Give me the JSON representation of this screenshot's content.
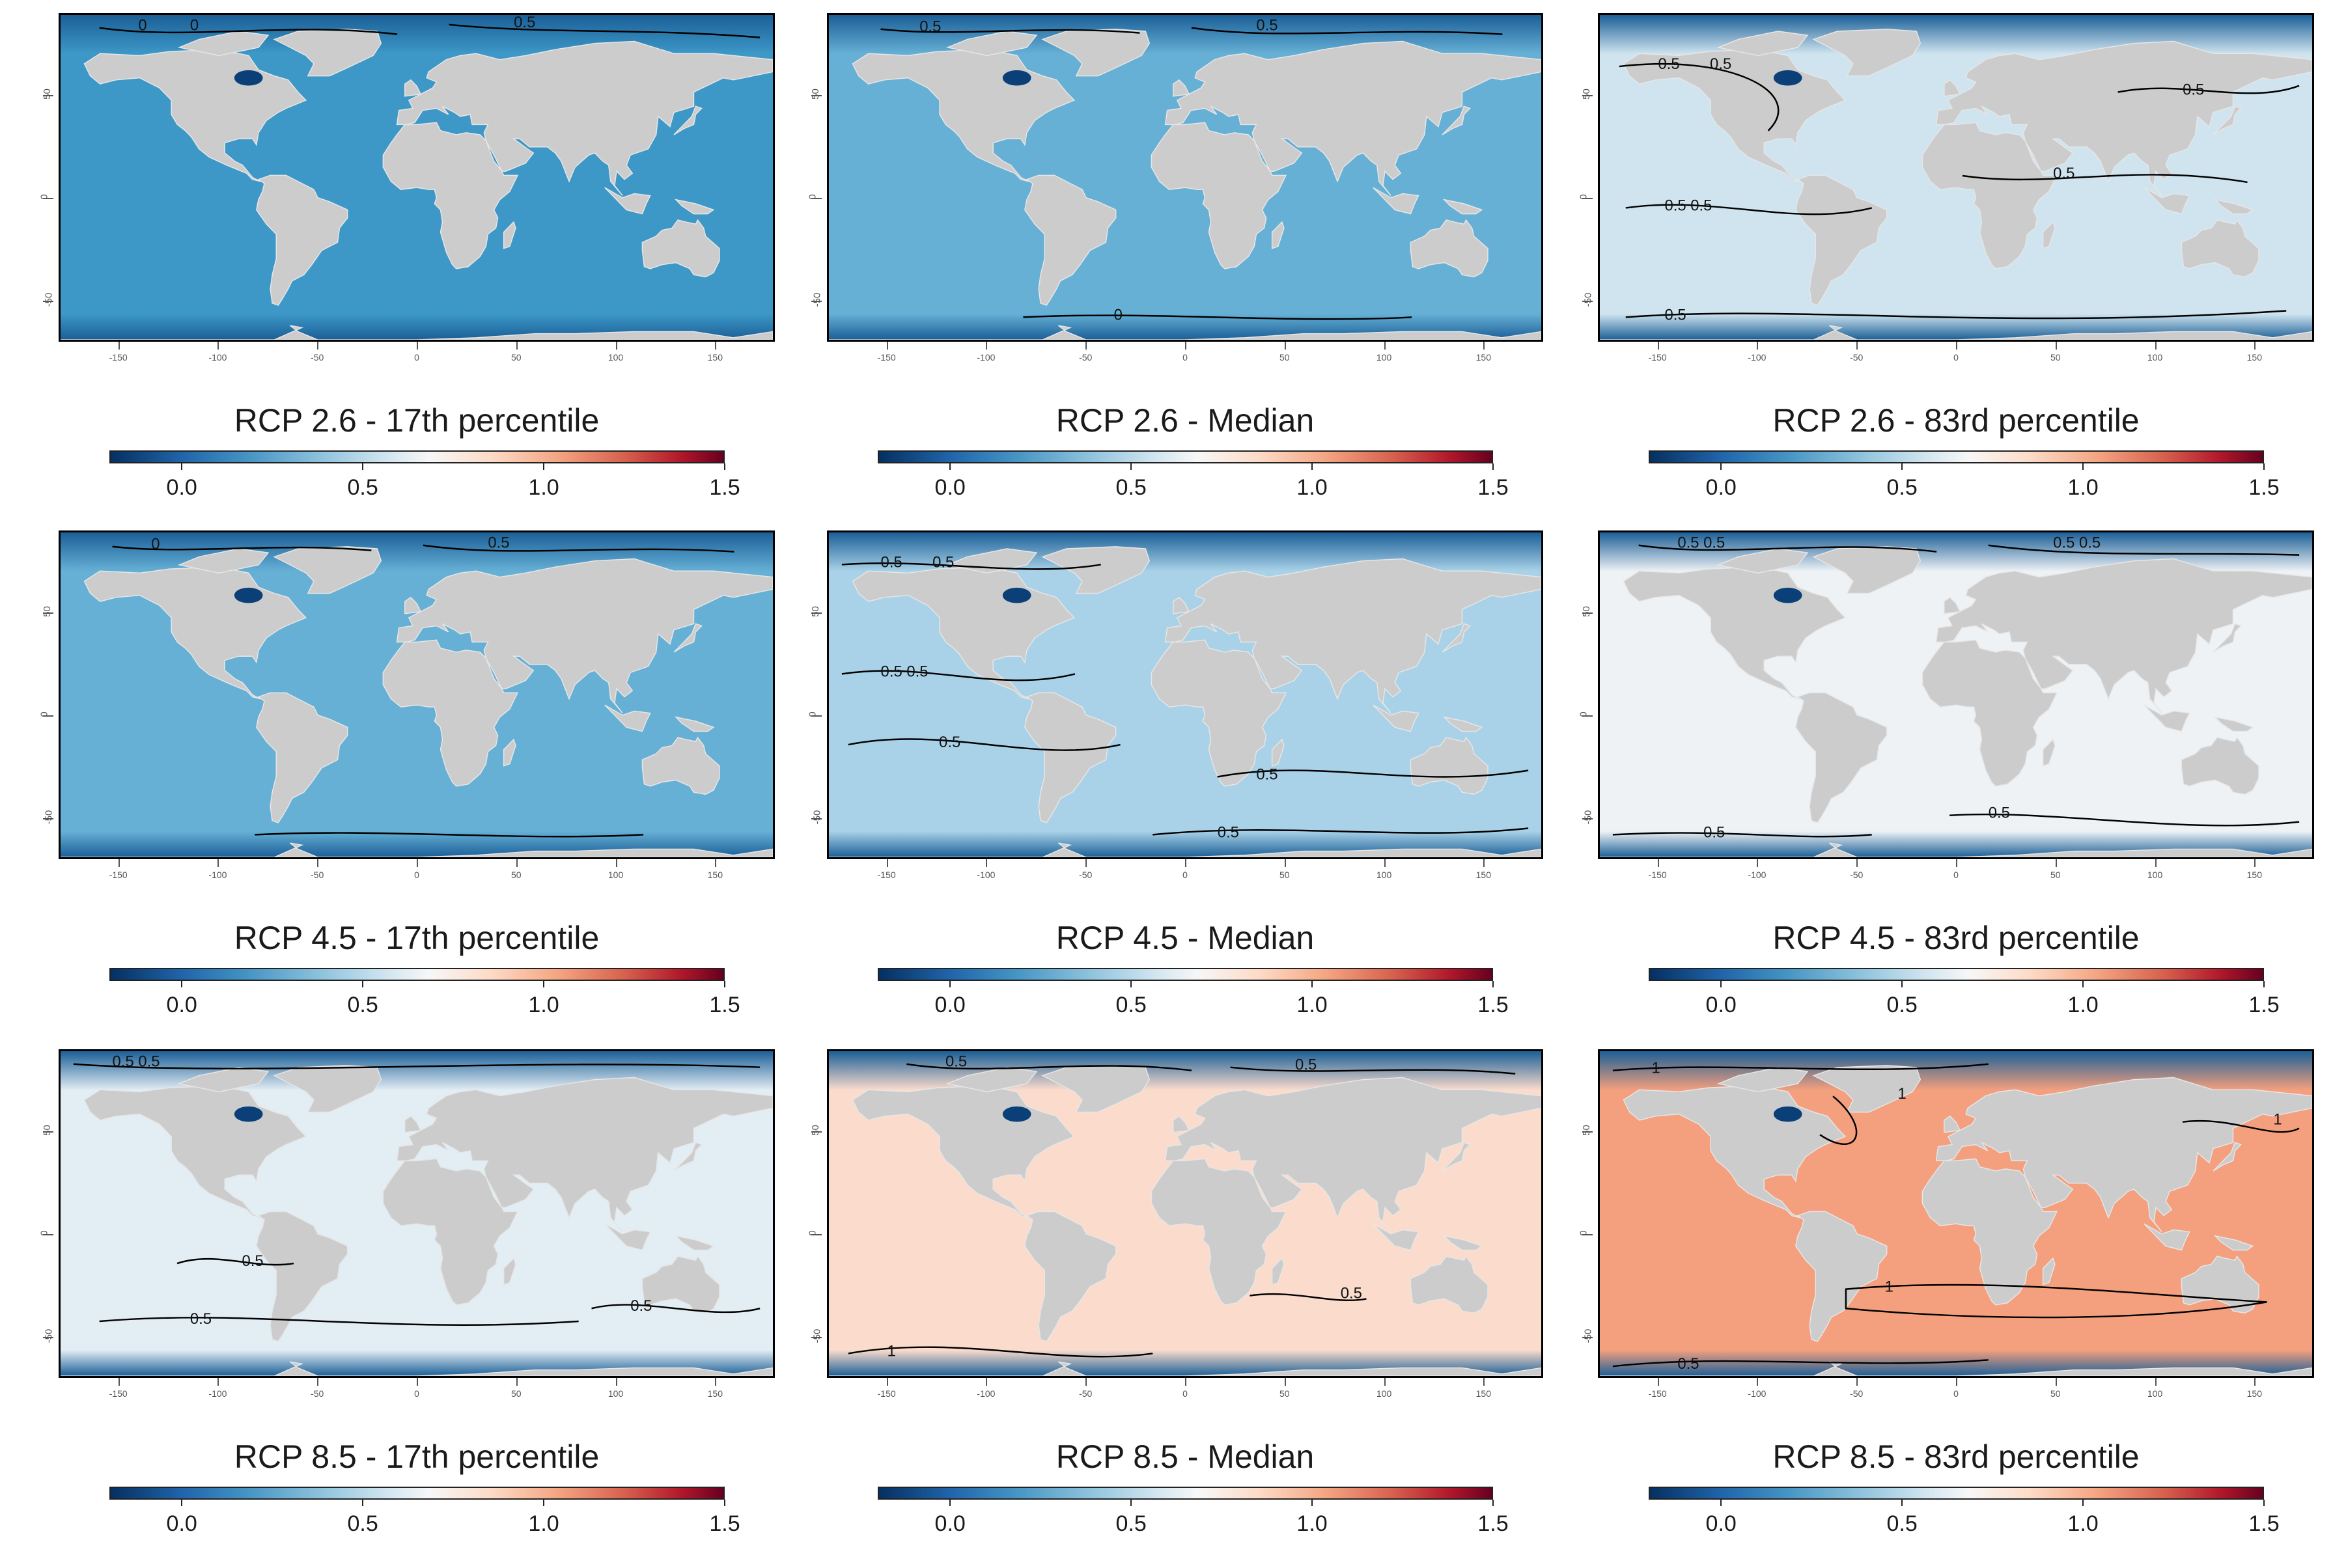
{
  "figure": {
    "rows": [
      "RCP 2.6",
      "RCP 4.5",
      "RCP 8.5"
    ],
    "columns": [
      "17th percentile",
      "Median",
      "83rd percentile"
    ],
    "panels": [
      {
        "title": "RCP 2.6 - 17th percentile",
        "tone": "cool-strong",
        "contour_labels": [
          "0",
          "0.5",
          "0"
        ]
      },
      {
        "title": "RCP 2.6 - Median",
        "tone": "cool",
        "contour_labels": [
          "0.5",
          "0.5",
          "0"
        ]
      },
      {
        "title": "RCP 2.6 - 83rd percentile",
        "tone": "light",
        "contour_labels": [
          "0.5",
          "0.5",
          "0.5",
          "0.5",
          "0.5",
          "0.5",
          "0.5"
        ]
      },
      {
        "title": "RCP 4.5 - 17th percentile",
        "tone": "cool",
        "contour_labels": [
          "0",
          "0.5"
        ]
      },
      {
        "title": "RCP 4.5 - Median",
        "tone": "light-cool",
        "contour_labels": [
          "0.5",
          "0.5",
          "0.5",
          "0.5",
          "0.5",
          "0.5",
          "0.5"
        ]
      },
      {
        "title": "RCP 4.5 - 83rd percentile",
        "tone": "neutral",
        "contour_labels": [
          "0.5",
          "0.5",
          "0.5",
          "0.5",
          "0.5",
          "0.5"
        ]
      },
      {
        "title": "RCP 8.5 - 17th percentile",
        "tone": "neutral-cool",
        "contour_labels": [
          "0.5",
          "0.5",
          "0.5",
          "0.5",
          "0.5"
        ]
      },
      {
        "title": "RCP 8.5 - Median",
        "tone": "warm",
        "contour_labels": [
          "0.5",
          "0.5",
          "0.5",
          "1"
        ]
      },
      {
        "title": "RCP 8.5 - 83rd percentile",
        "tone": "hot",
        "contour_labels": [
          "1",
          "1",
          "1",
          "1",
          "0.5"
        ]
      }
    ],
    "x_ticks": [
      "-150",
      "-100",
      "-50",
      "0",
      "50",
      "100",
      "150"
    ],
    "y_ticks": [
      "50",
      "0",
      "-50"
    ],
    "colorbar": {
      "ticks": [
        "0.0",
        "0.5",
        "1.0",
        "1.5"
      ],
      "range": [
        -0.2,
        1.5
      ],
      "palette": "RdBu reversed (blue = low, red = high)"
    },
    "colors": {
      "land": "#cccccc",
      "contour": "#000000",
      "cool-strong": "#3d98c8",
      "cool": "#66b0d6",
      "light-cool": "#a9d2e8",
      "light": "#cfe4ef",
      "neutral": "#eef2f5",
      "neutral-cool": "#e2edf4",
      "warm": "#fbdccc",
      "hot": "#f4a07e",
      "arctic": "#1b5f97"
    }
  }
}
